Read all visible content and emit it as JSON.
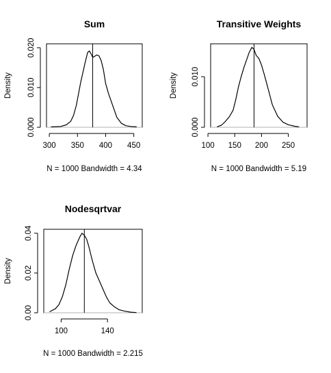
{
  "chart_data": [
    {
      "type": "line",
      "title": "Sum",
      "xlabel": "N = 1000   Bandwidth = 4.34",
      "ylabel": "Density",
      "xlim": [
        295,
        465
      ],
      "ylim": [
        0,
        0.021
      ],
      "xticks": [
        300,
        350,
        400,
        450
      ],
      "yticks": [
        0.0,
        0.01,
        0.02
      ],
      "ytick_labels": [
        "0.000",
        "0.010",
        "0.020"
      ],
      "reference_line_x": 377,
      "baseline_y": 0,
      "grid": false,
      "series": [
        {
          "x": [
            303,
            320,
            330,
            338,
            343,
            348,
            352,
            356,
            360,
            364,
            368,
            371,
            374,
            377,
            380,
            384,
            388,
            392,
            396,
            400,
            405,
            410,
            415,
            420,
            428,
            436,
            445,
            455
          ],
          "y": [
            0.0001,
            0.0002,
            0.0006,
            0.0015,
            0.003,
            0.0055,
            0.0085,
            0.0115,
            0.014,
            0.0165,
            0.0188,
            0.0192,
            0.0185,
            0.0176,
            0.0178,
            0.0182,
            0.018,
            0.0168,
            0.0145,
            0.011,
            0.0085,
            0.0065,
            0.0045,
            0.0025,
            0.001,
            0.0004,
            0.0002,
            0.0001
          ]
        }
      ]
    },
    {
      "type": "line",
      "title": "Transitive Weights",
      "xlabel": "N = 1000   Bandwidth = 5.19",
      "ylabel": "Density",
      "xlim": [
        105,
        285
      ],
      "ylim": [
        0,
        0.0165
      ],
      "xticks": [
        100,
        150,
        200,
        250
      ],
      "yticks": [
        0.0,
        0.01
      ],
      "ytick_labels": [
        "0.000",
        "0.010"
      ],
      "reference_line_x": 186,
      "baseline_y": 0,
      "grid": false,
      "series": [
        {
          "x": [
            117,
            125,
            132,
            140,
            147,
            152,
            157,
            162,
            167,
            172,
            177,
            182,
            186,
            190,
            195,
            200,
            205,
            210,
            215,
            220,
            230,
            240,
            250,
            262,
            270
          ],
          "y": [
            0.0001,
            0.0004,
            0.0011,
            0.0021,
            0.0034,
            0.0055,
            0.008,
            0.01,
            0.0118,
            0.0133,
            0.0148,
            0.0158,
            0.0154,
            0.0142,
            0.0136,
            0.0123,
            0.0105,
            0.0085,
            0.0065,
            0.0045,
            0.0022,
            0.001,
            0.0005,
            0.0002,
            0.0001
          ]
        }
      ]
    },
    {
      "type": "line",
      "title": "Nodesqrtvar",
      "xlabel": "N = 1000   Bandwidth = 2.215",
      "ylabel": "Density",
      "xlim": [
        85,
        170
      ],
      "ylim": [
        0,
        0.042
      ],
      "xticks": [
        100,
        140
      ],
      "yticks": [
        0.0,
        0.02,
        0.04
      ],
      "ytick_labels": [
        "0.00",
        "0.02",
        "0.04"
      ],
      "reference_line_x": 120,
      "baseline_y": 0,
      "grid": false,
      "series": [
        {
          "x": [
            90,
            95,
            98,
            101,
            104,
            107,
            110,
            113,
            116,
            118,
            120,
            122,
            124,
            127,
            130,
            133,
            136,
            139,
            142,
            146,
            150,
            155,
            160,
            165
          ],
          "y": [
            0.0005,
            0.002,
            0.004,
            0.008,
            0.014,
            0.022,
            0.029,
            0.034,
            0.038,
            0.04,
            0.039,
            0.037,
            0.033,
            0.026,
            0.02,
            0.016,
            0.012,
            0.008,
            0.005,
            0.003,
            0.0015,
            0.0008,
            0.0003,
            0.0001
          ]
        }
      ]
    }
  ]
}
